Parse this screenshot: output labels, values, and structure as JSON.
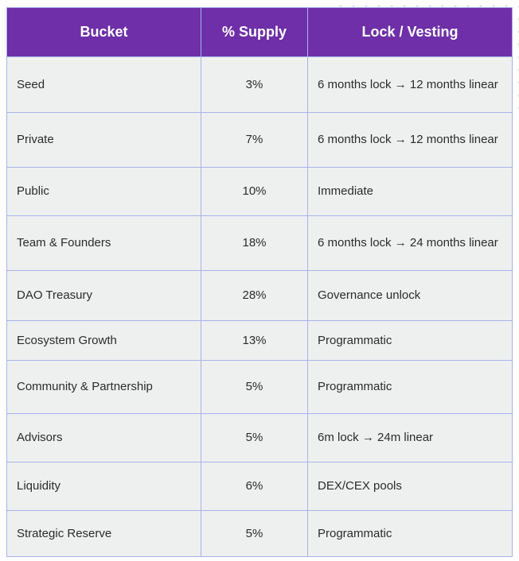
{
  "table": {
    "headers": [
      "Bucket",
      "% Supply",
      "Lock / Vesting"
    ],
    "rows": [
      {
        "bucket": "Seed",
        "supply": "3%",
        "vesting": "6 months lock → 12 months linear"
      },
      {
        "bucket": "Private",
        "supply": "7%",
        "vesting": "6 months lock → 12 months linear"
      },
      {
        "bucket": "Public",
        "supply": "10%",
        "vesting": "Immediate"
      },
      {
        "bucket": "Team & Founders",
        "supply": "18%",
        "vesting": "6 months lock → 24 months linear"
      },
      {
        "bucket": "DAO Treasury",
        "supply": "28%",
        "vesting": "Governance unlock"
      },
      {
        "bucket": "Ecosystem Growth",
        "supply": "13%",
        "vesting": "Programmatic"
      },
      {
        "bucket": "Community & Partnership",
        "supply": "5%",
        "vesting": "Programmatic"
      },
      {
        "bucket": "Advisors",
        "supply": "5%",
        "vesting": "6m lock → 24m linear"
      },
      {
        "bucket": "Liquidity",
        "supply": "6%",
        "vesting": "DEX/CEX pools"
      },
      {
        "bucket": "Strategic Reserve",
        "supply": "5%",
        "vesting": "Programmatic"
      }
    ]
  },
  "colors": {
    "header_bg": "#6e2fa8",
    "header_text": "#ffffff",
    "cell_bg": "#eef0ef",
    "border": "#a8b2ec"
  }
}
